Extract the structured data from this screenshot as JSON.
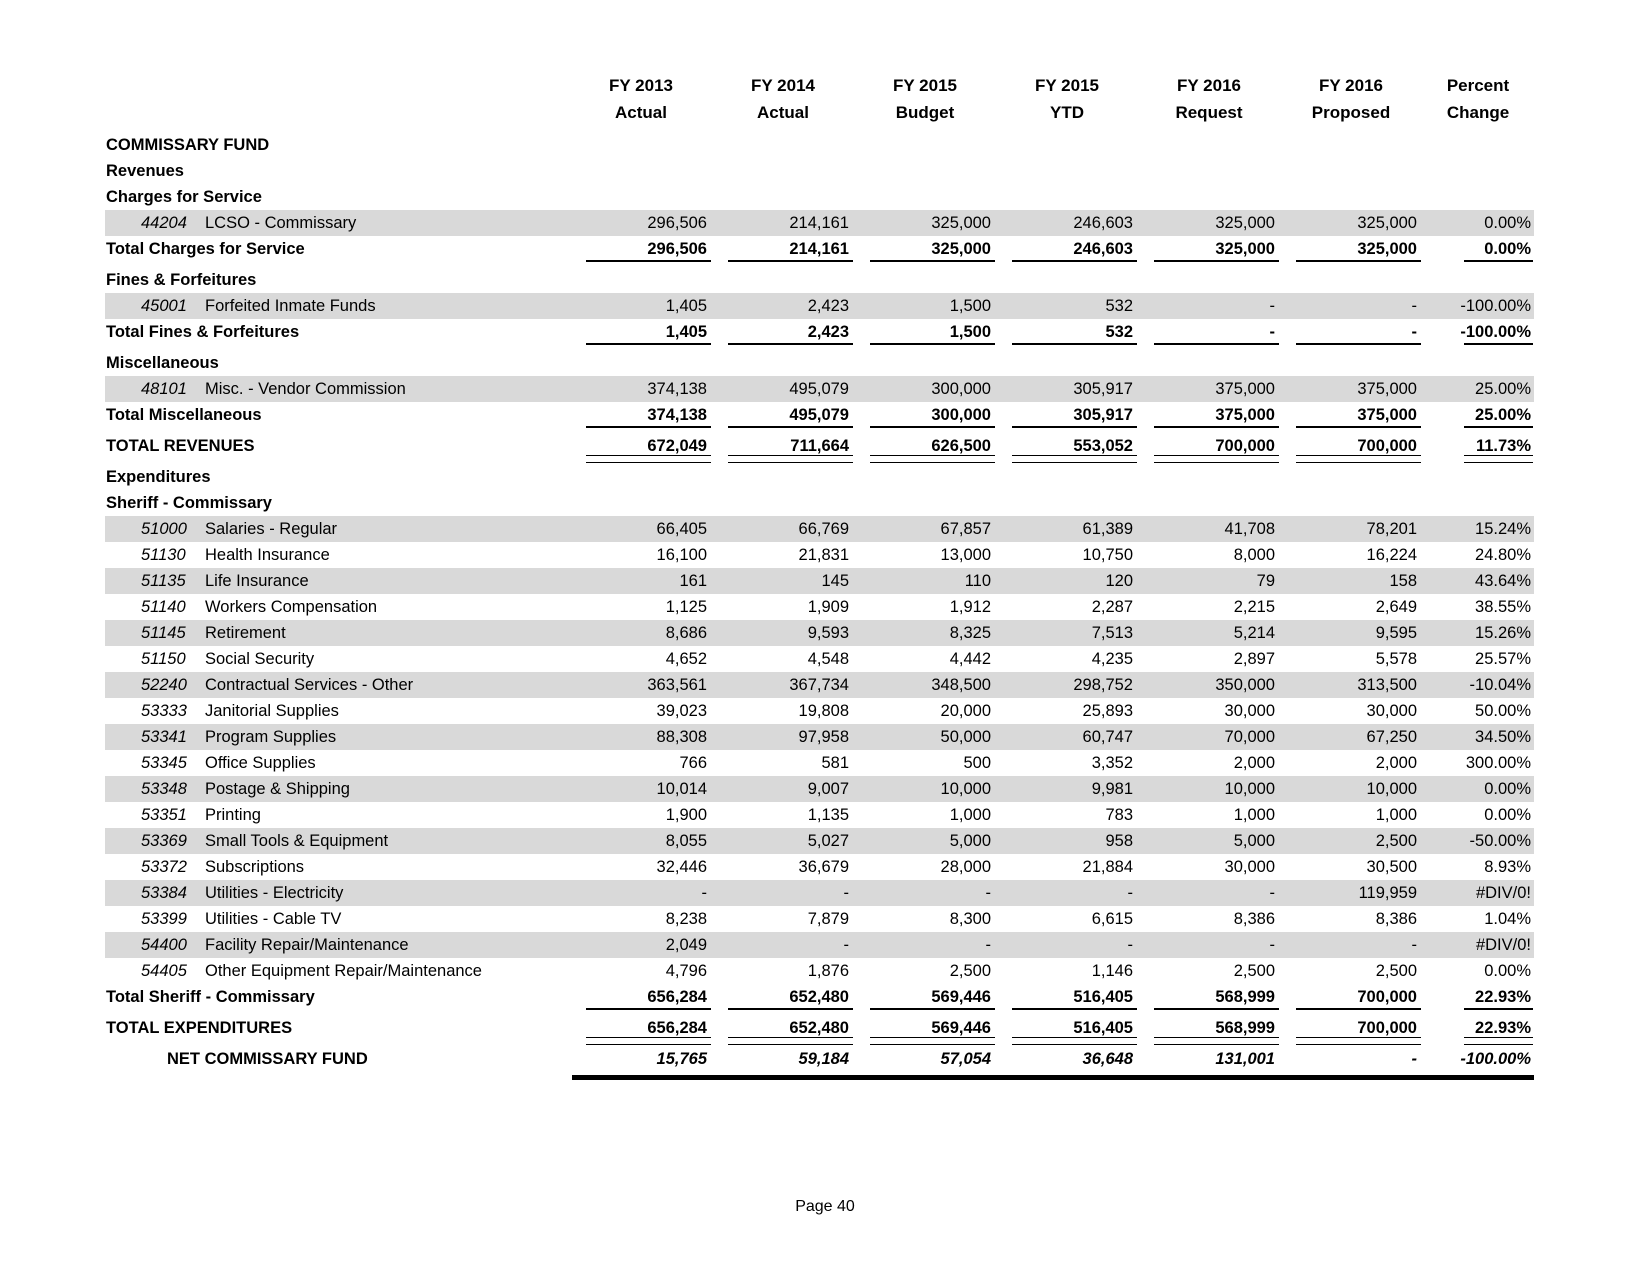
{
  "table": {
    "header": {
      "columns": [
        {
          "line1": "FY 2013",
          "line2": "Actual"
        },
        {
          "line1": "FY 2014",
          "line2": "Actual"
        },
        {
          "line1": "FY 2015",
          "line2": "Budget"
        },
        {
          "line1": "FY 2015",
          "line2": "YTD"
        },
        {
          "line1": "FY 2016",
          "line2": "Request"
        },
        {
          "line1": "FY 2016",
          "line2": "Proposed"
        },
        {
          "line1": "Percent",
          "line2": "Change"
        }
      ]
    },
    "rows": [
      {
        "type": "section",
        "label": "COMMISSARY FUND",
        "values": []
      },
      {
        "type": "section",
        "label": "Revenues",
        "values": []
      },
      {
        "type": "section",
        "label": "Charges for Service",
        "values": []
      },
      {
        "type": "detail",
        "shaded": true,
        "code": "44204",
        "label": "LCSO - Commissary",
        "values": [
          "296,506",
          "214,161",
          "325,000",
          "246,603",
          "325,000",
          "325,000",
          "0.00%"
        ]
      },
      {
        "type": "subtotal",
        "label": "Total Charges for Service",
        "values": [
          "296,506",
          "214,161",
          "325,000",
          "246,603",
          "325,000",
          "325,000",
          "0.00%"
        ]
      },
      {
        "type": "section",
        "gap": true,
        "label": "Fines & Forfeitures",
        "values": []
      },
      {
        "type": "detail",
        "shaded": true,
        "code": "45001",
        "label": "Forfeited Inmate Funds",
        "values": [
          "1,405",
          "2,423",
          "1,500",
          "532",
          "-",
          "-",
          "-100.00%"
        ]
      },
      {
        "type": "subtotal",
        "label": "Total Fines & Forfeitures",
        "values": [
          "1,405",
          "2,423",
          "1,500",
          "532",
          "-",
          "-",
          "-100.00%"
        ]
      },
      {
        "type": "section",
        "gap": true,
        "label": "Miscellaneous",
        "values": []
      },
      {
        "type": "detail",
        "shaded": true,
        "code": "48101",
        "label": "Misc. - Vendor Commission",
        "values": [
          "374,138",
          "495,079",
          "300,000",
          "305,917",
          "375,000",
          "375,000",
          "25.00%"
        ]
      },
      {
        "type": "subtotal",
        "label": "Total Miscellaneous",
        "values": [
          "374,138",
          "495,079",
          "300,000",
          "305,917",
          "375,000",
          "375,000",
          "25.00%"
        ]
      },
      {
        "type": "grandtotal",
        "gap": true,
        "label": "TOTAL REVENUES",
        "values": [
          "672,049",
          "711,664",
          "626,500",
          "553,052",
          "700,000",
          "700,000",
          "11.73%"
        ]
      },
      {
        "type": "section",
        "gap": true,
        "label": "Expenditures",
        "values": []
      },
      {
        "type": "section",
        "label": "Sheriff - Commissary",
        "values": []
      },
      {
        "type": "detail",
        "shaded": true,
        "code": "51000",
        "label": "Salaries - Regular",
        "values": [
          "66,405",
          "66,769",
          "67,857",
          "61,389",
          "41,708",
          "78,201",
          "15.24%"
        ]
      },
      {
        "type": "detail",
        "code": "51130",
        "label": "Health Insurance",
        "values": [
          "16,100",
          "21,831",
          "13,000",
          "10,750",
          "8,000",
          "16,224",
          "24.80%"
        ]
      },
      {
        "type": "detail",
        "shaded": true,
        "code": "51135",
        "label": "Life Insurance",
        "values": [
          "161",
          "145",
          "110",
          "120",
          "79",
          "158",
          "43.64%"
        ]
      },
      {
        "type": "detail",
        "code": "51140",
        "label": "Workers Compensation",
        "values": [
          "1,125",
          "1,909",
          "1,912",
          "2,287",
          "2,215",
          "2,649",
          "38.55%"
        ]
      },
      {
        "type": "detail",
        "shaded": true,
        "code": "51145",
        "label": "Retirement",
        "values": [
          "8,686",
          "9,593",
          "8,325",
          "7,513",
          "5,214",
          "9,595",
          "15.26%"
        ]
      },
      {
        "type": "detail",
        "code": "51150",
        "label": "Social Security",
        "values": [
          "4,652",
          "4,548",
          "4,442",
          "4,235",
          "2,897",
          "5,578",
          "25.57%"
        ]
      },
      {
        "type": "detail",
        "shaded": true,
        "code": "52240",
        "label": "Contractual Services - Other",
        "values": [
          "363,561",
          "367,734",
          "348,500",
          "298,752",
          "350,000",
          "313,500",
          "-10.04%"
        ]
      },
      {
        "type": "detail",
        "code": "53333",
        "label": "Janitorial Supplies",
        "values": [
          "39,023",
          "19,808",
          "20,000",
          "25,893",
          "30,000",
          "30,000",
          "50.00%"
        ]
      },
      {
        "type": "detail",
        "shaded": true,
        "code": "53341",
        "label": "Program Supplies",
        "values": [
          "88,308",
          "97,958",
          "50,000",
          "60,747",
          "70,000",
          "67,250",
          "34.50%"
        ]
      },
      {
        "type": "detail",
        "code": "53345",
        "label": "Office Supplies",
        "values": [
          "766",
          "581",
          "500",
          "3,352",
          "2,000",
          "2,000",
          "300.00%"
        ]
      },
      {
        "type": "detail",
        "shaded": true,
        "code": "53348",
        "label": "Postage & Shipping",
        "values": [
          "10,014",
          "9,007",
          "10,000",
          "9,981",
          "10,000",
          "10,000",
          "0.00%"
        ]
      },
      {
        "type": "detail",
        "code": "53351",
        "label": "Printing",
        "values": [
          "1,900",
          "1,135",
          "1,000",
          "783",
          "1,000",
          "1,000",
          "0.00%"
        ]
      },
      {
        "type": "detail",
        "shaded": true,
        "code": "53369",
        "label": "Small Tools & Equipment",
        "values": [
          "8,055",
          "5,027",
          "5,000",
          "958",
          "5,000",
          "2,500",
          "-50.00%"
        ]
      },
      {
        "type": "detail",
        "code": "53372",
        "label": "Subscriptions",
        "values": [
          "32,446",
          "36,679",
          "28,000",
          "21,884",
          "30,000",
          "30,500",
          "8.93%"
        ]
      },
      {
        "type": "detail",
        "shaded": true,
        "code": "53384",
        "label": "Utilities - Electricity",
        "values": [
          "-",
          "-",
          "-",
          "-",
          "-",
          "119,959",
          "#DIV/0!"
        ]
      },
      {
        "type": "detail",
        "code": "53399",
        "label": "Utilities - Cable TV",
        "values": [
          "8,238",
          "7,879",
          "8,300",
          "6,615",
          "8,386",
          "8,386",
          "1.04%"
        ]
      },
      {
        "type": "detail",
        "shaded": true,
        "code": "54400",
        "label": "Facility Repair/Maintenance",
        "values": [
          "2,049",
          "-",
          "-",
          "-",
          "-",
          "-",
          "#DIV/0!"
        ]
      },
      {
        "type": "detail",
        "code": "54405",
        "label": "Other Equipment Repair/Maintenance",
        "values": [
          "4,796",
          "1,876",
          "2,500",
          "1,146",
          "2,500",
          "2,500",
          "0.00%"
        ]
      },
      {
        "type": "subtotal",
        "label": "Total Sheriff - Commissary",
        "values": [
          "656,284",
          "652,480",
          "569,446",
          "516,405",
          "568,999",
          "700,000",
          "22.93%"
        ]
      },
      {
        "type": "grandtotal",
        "gap": true,
        "label": "TOTAL EXPENDITURES",
        "values": [
          "656,284",
          "652,480",
          "569,446",
          "516,405",
          "568,999",
          "700,000",
          "22.93%"
        ]
      },
      {
        "type": "net",
        "gap": true,
        "label": "NET COMMISSARY FUND",
        "values": [
          "15,765",
          "59,184",
          "57,054",
          "36,648",
          "131,001",
          "-",
          "-100.00%"
        ]
      }
    ]
  },
  "footer": {
    "page_label": "Page 40"
  }
}
